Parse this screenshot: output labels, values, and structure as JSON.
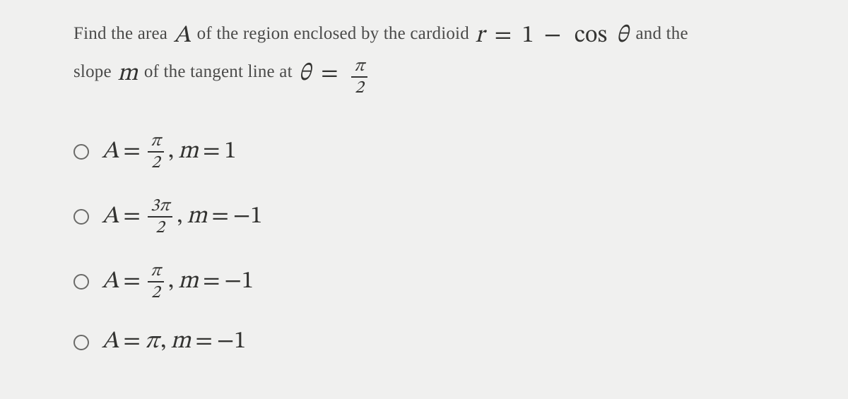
{
  "colors": {
    "background": "#f0f0ef",
    "body_text": "#4a4a49",
    "math_text": "#333331",
    "radio_border": "#6a6a68",
    "frac_rule": "#333333"
  },
  "typography": {
    "body_family": "Georgia, Times New Roman, serif",
    "math_family": "STIX Two Math, Cambria Math, Latin Modern Math, Georgia, serif",
    "body_size_pt": 19,
    "math_size_pt": 26,
    "frac_size_pt": 19
  },
  "question": {
    "pre": "Find the area ",
    "A": "A",
    "mid1": " of the region enclosed by the cardioid ",
    "eq1_lhs": "r",
    "eq1_eq": "=",
    "eq1_rhs_a": "1",
    "eq1_rhs_minus": "−",
    "eq1_rhs_cos": "cos",
    "eq1_rhs_theta": "θ",
    "mid2": " and the",
    "line2_pre": "slope ",
    "m": "m",
    "line2_mid": " of the tangent line at ",
    "eq2_lhs": "θ",
    "eq2_eq": "=",
    "eq2_frac_num": "π",
    "eq2_frac_den": "2"
  },
  "options": [
    {
      "A_sym": "A",
      "eq": "=",
      "frac_num": "π",
      "frac_den": "2",
      "comma": ",",
      "m_sym": "m",
      "m_eq": "=",
      "m_val": "1"
    },
    {
      "A_sym": "A",
      "eq": "=",
      "frac_num": "3π",
      "frac_den": "2",
      "comma": ",",
      "m_sym": "m",
      "m_eq": "=",
      "m_val": "−1"
    },
    {
      "A_sym": "A",
      "eq": "=",
      "frac_num": "π",
      "frac_den": "2",
      "comma": ",",
      "m_sym": "m",
      "m_eq": "=",
      "m_val": "−1"
    },
    {
      "A_sym": "A",
      "eq": "=",
      "A_val": "π",
      "comma": ",",
      "m_sym": "m",
      "m_eq": "=",
      "m_val": "−1"
    }
  ]
}
